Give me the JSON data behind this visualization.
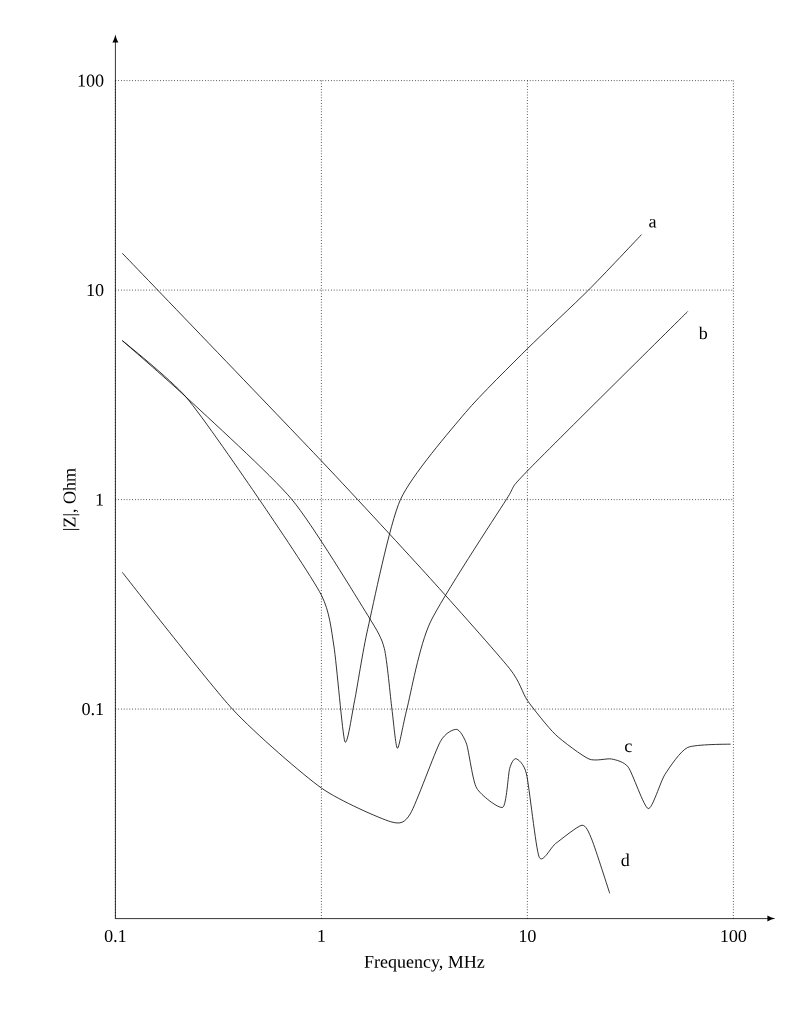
{
  "chart_data": {
    "type": "line",
    "xlabel": "Frequency, MHz",
    "ylabel": "|Z|, Ohm",
    "log": "xy",
    "grid": true,
    "marker": "none",
    "line_style": "solid",
    "xlim": [
      0.1,
      100
    ],
    "ylim": [
      0.01,
      100
    ],
    "xticks": [
      0.1,
      1,
      10,
      100
    ],
    "yticks": [
      0.1,
      1,
      10,
      100
    ],
    "series": [
      {
        "name": "a",
        "color": "#000000",
        "x": [
          0.108,
          0.22,
          0.5,
          1,
          1.15,
          1.3,
          1.45,
          1.68,
          2.42,
          5,
          10,
          19.8,
          35.8
        ],
        "values": [
          5.74,
          3.09,
          1.0,
          0.35,
          0.2,
          0.07,
          0.11,
          0.242,
          1.0,
          2.6,
          5.25,
          10,
          18.4
        ]
      },
      {
        "name": "b",
        "color": "#000000",
        "x": [
          0.108,
          0.22,
          0.72,
          1.68,
          2.02,
          2.2,
          2.34,
          2.6,
          3.38,
          7.9,
          10,
          60
        ],
        "values": [
          5.74,
          3.09,
          1.0,
          0.28,
          0.195,
          0.1,
          0.065,
          0.1,
          0.26,
          1.0,
          1.37,
          7.9
        ]
      },
      {
        "name": "c",
        "color": "#000000",
        "x": [
          0.108,
          1,
          3.38,
          8.2,
          10,
          13.7,
          19.9,
          25.6,
          30.9,
          38.6,
          46.5,
          60,
          97
        ],
        "values": [
          15,
          1.53,
          0.42,
          0.156,
          0.11,
          0.0755,
          0.0578,
          0.0578,
          0.0528,
          0.0335,
          0.0487,
          0.0656,
          0.068
        ]
      },
      {
        "name": "d",
        "color": "#000000",
        "x": [
          0.108,
          0.37,
          1,
          2.17,
          2.7,
          3.78,
          4.54,
          5.07,
          5.67,
          7.6,
          8.2,
          8.8,
          9.9,
          11.4,
          13.7,
          18.4,
          20.6,
          25.1
        ],
        "values": [
          0.45,
          0.1,
          0.042,
          0.029,
          0.0316,
          0.07,
          0.08,
          0.068,
          0.042,
          0.034,
          0.052,
          0.058,
          0.049,
          0.0197,
          0.0228,
          0.0279,
          0.0237,
          0.0132
        ]
      }
    ]
  }
}
